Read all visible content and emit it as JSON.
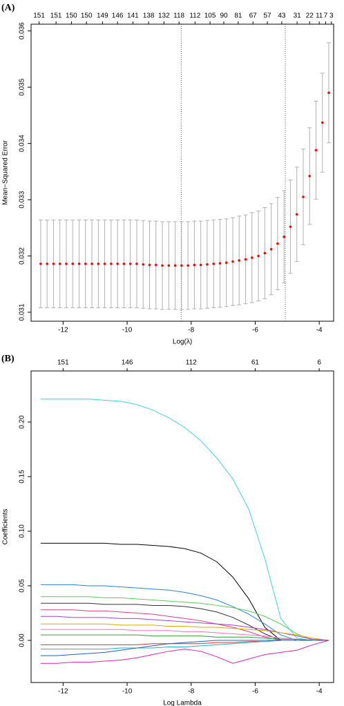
{
  "chart_data": [
    {
      "type": "errorbar_scatter",
      "panel_label": "(A)",
      "xlabel": "Log(λ)",
      "ylabel": "Mean−Squared Error",
      "color": "#ff0000",
      "bar_color": "#b0b0b0",
      "xlim": [
        -13.0,
        -3.55
      ],
      "xticks": [
        -12,
        -10,
        -8,
        -6,
        -4
      ],
      "ylim": [
        0.03084,
        0.03612
      ],
      "yticks": [
        0.031,
        0.032,
        0.033,
        0.034,
        0.035,
        0.036
      ],
      "vlines": [
        -8.31,
        -5.06
      ],
      "top_ticks": [
        {
          "value": -12.75,
          "label": "151"
        },
        {
          "value": -12.22,
          "label": "151"
        },
        {
          "value": -11.74,
          "label": "150"
        },
        {
          "value": -11.27,
          "label": "150"
        },
        {
          "value": -10.77,
          "label": "149"
        },
        {
          "value": -10.3,
          "label": "146"
        },
        {
          "value": -9.82,
          "label": "141"
        },
        {
          "value": -9.33,
          "label": "138"
        },
        {
          "value": -8.85,
          "label": "132"
        },
        {
          "value": -8.38,
          "label": "118"
        },
        {
          "value": -7.88,
          "label": "112"
        },
        {
          "value": -7.41,
          "label": "105"
        },
        {
          "value": -6.98,
          "label": "90"
        },
        {
          "value": -6.53,
          "label": "81"
        },
        {
          "value": -6.07,
          "label": "67"
        },
        {
          "value": -5.62,
          "label": "57"
        },
        {
          "value": -5.17,
          "label": "43"
        },
        {
          "value": -4.69,
          "label": "31"
        },
        {
          "value": -4.3,
          "label": "22"
        },
        {
          "value": -4.0,
          "label": "11"
        },
        {
          "value": -3.8,
          "label": "7"
        },
        {
          "value": -3.62,
          "label": "3"
        }
      ],
      "x": [
        -12.7,
        -12.5,
        -12.3,
        -12.1,
        -11.9,
        -11.7,
        -11.5,
        -11.3,
        -11.1,
        -10.9,
        -10.7,
        -10.5,
        -10.3,
        -10.1,
        -9.9,
        -9.7,
        -9.5,
        -9.3,
        -9.1,
        -8.9,
        -8.7,
        -8.5,
        -8.3,
        -8.1,
        -7.9,
        -7.7,
        -7.5,
        -7.3,
        -7.1,
        -6.9,
        -6.7,
        -6.5,
        -6.3,
        -6.1,
        -5.9,
        -5.7,
        -5.5,
        -5.3,
        -5.1,
        -4.9,
        -4.7,
        -4.5,
        -4.3,
        -4.1,
        -3.9,
        -3.7
      ],
      "values": [
        0.03186,
        0.03186,
        0.03186,
        0.03186,
        0.03186,
        0.03186,
        0.03186,
        0.03186,
        0.03186,
        0.03186,
        0.03186,
        0.03186,
        0.03186,
        0.03186,
        0.03186,
        0.03186,
        0.03185,
        0.03184,
        0.03184,
        0.03183,
        0.03183,
        0.03183,
        0.03183,
        0.03183,
        0.03184,
        0.03184,
        0.03185,
        0.03186,
        0.03187,
        0.03188,
        0.0319,
        0.03192,
        0.03194,
        0.03197,
        0.032,
        0.03205,
        0.03212,
        0.03222,
        0.03234,
        0.03252,
        0.03274,
        0.03305,
        0.03342,
        0.03388,
        0.03437,
        0.0349
      ],
      "errors": [
        0.00078,
        0.00078,
        0.00078,
        0.00078,
        0.00078,
        0.00078,
        0.00078,
        0.00078,
        0.00078,
        0.00078,
        0.00078,
        0.00078,
        0.00078,
        0.00078,
        0.00078,
        0.00078,
        0.00078,
        0.00078,
        0.00078,
        0.00078,
        0.00078,
        0.00078,
        0.00078,
        0.00078,
        0.00078,
        0.00078,
        0.00078,
        0.00078,
        0.00078,
        0.00078,
        0.00078,
        0.00079,
        0.00079,
        0.0008,
        0.0008,
        0.00081,
        0.00081,
        0.00082,
        0.00082,
        0.00083,
        0.00084,
        0.00085,
        0.00086,
        0.00087,
        0.00088,
        0.00089
      ]
    },
    {
      "type": "line",
      "panel_label": "(B)",
      "xlabel": "Log Lambda",
      "ylabel": "Coefficients",
      "xlim": [
        -13.0,
        -3.55
      ],
      "xticks": [
        -12,
        -10,
        -8,
        -6,
        -4
      ],
      "ylim": [
        -0.0386,
        0.2468
      ],
      "yticks": [
        {
          "value": 0,
          "label": "0.00"
        },
        {
          "value": 0.05,
          "label": "0.05"
        },
        {
          "value": 0.1,
          "label": "0.10"
        },
        {
          "value": 0.15,
          "label": "0.15"
        },
        {
          "value": 0.2,
          "label": "0.20"
        }
      ],
      "top_ticks": [
        {
          "value": -12,
          "label": "151"
        },
        {
          "value": -10,
          "label": "146"
        },
        {
          "value": -8,
          "label": "112"
        },
        {
          "value": -6,
          "label": "61"
        },
        {
          "value": -4,
          "label": "6"
        }
      ],
      "x": [
        -12.7,
        -12.2,
        -11.7,
        -11.2,
        -10.7,
        -10.2,
        -9.7,
        -9.2,
        -8.7,
        -8.2,
        -7.7,
        -7.2,
        -6.7,
        -6.2,
        -5.7,
        -5.2,
        -4.7,
        -4.2,
        -3.7
      ],
      "series": [
        {
          "color": "#3fd0e0",
          "values": [
            0.221,
            0.221,
            0.221,
            0.221,
            0.22,
            0.219,
            0.216,
            0.211,
            0.204,
            0.195,
            0.183,
            0.167,
            0.148,
            0.12,
            0.075,
            0.02,
            0.002,
            0,
            0
          ]
        },
        {
          "color": "#000000",
          "values": [
            0.089,
            0.089,
            0.089,
            0.089,
            0.089,
            0.088,
            0.088,
            0.087,
            0.086,
            0.084,
            0.08,
            0.072,
            0.058,
            0.038,
            0.012,
            0,
            0,
            0,
            0
          ]
        },
        {
          "color": "#2b7fd8",
          "values": [
            0.051,
            0.051,
            0.051,
            0.05,
            0.05,
            0.049,
            0.048,
            0.047,
            0.046,
            0.044,
            0.041,
            0.037,
            0.031,
            0.024,
            0.015,
            0.005,
            0,
            0,
            0
          ]
        },
        {
          "color": "#5ac85a",
          "values": [
            0.04,
            0.04,
            0.04,
            0.04,
            0.039,
            0.039,
            0.038,
            0.037,
            0.036,
            0.035,
            0.034,
            0.032,
            0.03,
            0.027,
            0.022,
            0.015,
            0.006,
            0,
            0
          ]
        },
        {
          "color": "#333333",
          "values": [
            0.034,
            0.034,
            0.034,
            0.034,
            0.033,
            0.033,
            0.033,
            0.032,
            0.032,
            0.031,
            0.029,
            0.026,
            0.021,
            0.014,
            0.006,
            0,
            0,
            0,
            0
          ]
        },
        {
          "color": "#e0407a",
          "values": [
            0.028,
            0.028,
            0.028,
            0.027,
            0.027,
            0.026,
            0.025,
            0.024,
            0.022,
            0.02,
            0.018,
            0.015,
            0.012,
            0.008,
            0.003,
            0,
            0,
            0,
            0
          ]
        },
        {
          "color": "#a040d0",
          "values": [
            0.022,
            0.022,
            0.021,
            0.021,
            0.021,
            0.02,
            0.02,
            0.019,
            0.018,
            0.017,
            0.016,
            0.015,
            0.014,
            0.012,
            0.01,
            0.007,
            0.004,
            0.001,
            0
          ]
        },
        {
          "color": "#d4aa00",
          "values": [
            0.015,
            0.015,
            0.015,
            0.015,
            0.015,
            0.014,
            0.014,
            0.014,
            0.013,
            0.013,
            0.012,
            0.012,
            0.011,
            0.01,
            0.009,
            0.007,
            0.005,
            0.002,
            0
          ]
        },
        {
          "color": "#f070c0",
          "values": [
            0.01,
            0.01,
            0.01,
            0.01,
            0.01,
            0.01,
            0.009,
            0.009,
            0.009,
            0.008,
            0.008,
            0.007,
            0.006,
            0.005,
            0.004,
            0.002,
            0.001,
            0,
            0
          ]
        },
        {
          "color": "#30a030",
          "values": [
            0.005,
            0.005,
            0.005,
            0.005,
            0.005,
            0.005,
            0.005,
            0.004,
            0.004,
            0.004,
            0.004,
            0.003,
            0.003,
            0.003,
            0.002,
            0.001,
            0.001,
            0,
            0
          ]
        },
        {
          "color": "#e03030",
          "values": [
            -0.004,
            -0.004,
            -0.004,
            -0.004,
            -0.004,
            -0.004,
            -0.004,
            -0.003,
            -0.003,
            -0.003,
            -0.003,
            -0.002,
            -0.002,
            -0.001,
            -0.001,
            0,
            0,
            0,
            0
          ]
        },
        {
          "color": "#20b0c0",
          "values": [
            -0.008,
            -0.008,
            -0.008,
            -0.008,
            -0.008,
            -0.007,
            -0.007,
            -0.007,
            -0.006,
            -0.006,
            -0.005,
            -0.004,
            -0.003,
            -0.002,
            -0.001,
            0,
            0,
            0,
            0
          ]
        },
        {
          "color": "#1f5fbf",
          "values": [
            -0.014,
            -0.014,
            -0.013,
            -0.012,
            -0.011,
            -0.009,
            -0.007,
            -0.005,
            -0.003,
            -0.002,
            -0.001,
            0,
            0,
            0,
            0,
            0,
            0,
            0,
            0
          ]
        },
        {
          "color": "#e020b0",
          "values": [
            -0.021,
            -0.021,
            -0.02,
            -0.02,
            -0.019,
            -0.018,
            -0.016,
            -0.013,
            -0.01,
            -0.008,
            -0.01,
            -0.015,
            -0.021,
            -0.017,
            -0.013,
            -0.011,
            -0.009,
            -0.004,
            0
          ]
        }
      ]
    }
  ]
}
